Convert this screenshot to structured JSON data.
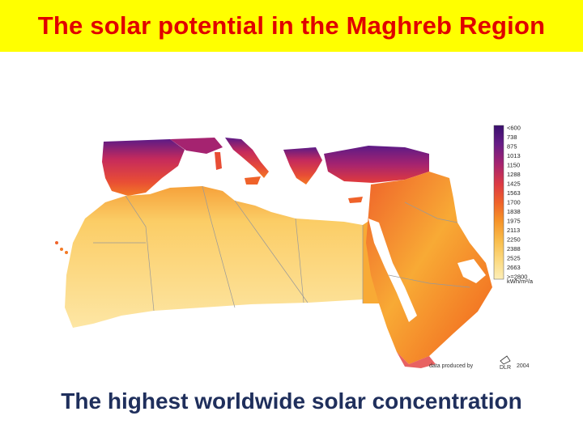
{
  "slide": {
    "title": "The solar potential in the Maghreb Region",
    "subtitle": "The highest worldwide solar concentration"
  },
  "map": {
    "legend": {
      "labels": [
        "<600",
        "738",
        "875",
        "1013",
        "1150",
        "1288",
        "1425",
        "1563",
        "1700",
        "1838",
        "1975",
        "2113",
        "2250",
        "2388",
        "2525",
        "2663",
        ">=2800"
      ],
      "unit": "kWh/m²/a",
      "colors": [
        "#3a0f6e",
        "#4b1480",
        "#661c86",
        "#84207f",
        "#a52370",
        "#c52a5c",
        "#dc3a45",
        "#e84d35",
        "#ef622a",
        "#f37a25",
        "#f69328",
        "#f8aa35",
        "#f9bd4c",
        "#fbcd66",
        "#fcda82",
        "#fde59c",
        "#fdeeb8"
      ]
    },
    "credit": "data produced by",
    "credit_org": "DLR",
    "credit_year": "2004",
    "colors": {
      "high": "#fde6a4",
      "mid": "#f6a13a",
      "low": "#e23b3b",
      "lowest": "#5c1a86"
    }
  }
}
